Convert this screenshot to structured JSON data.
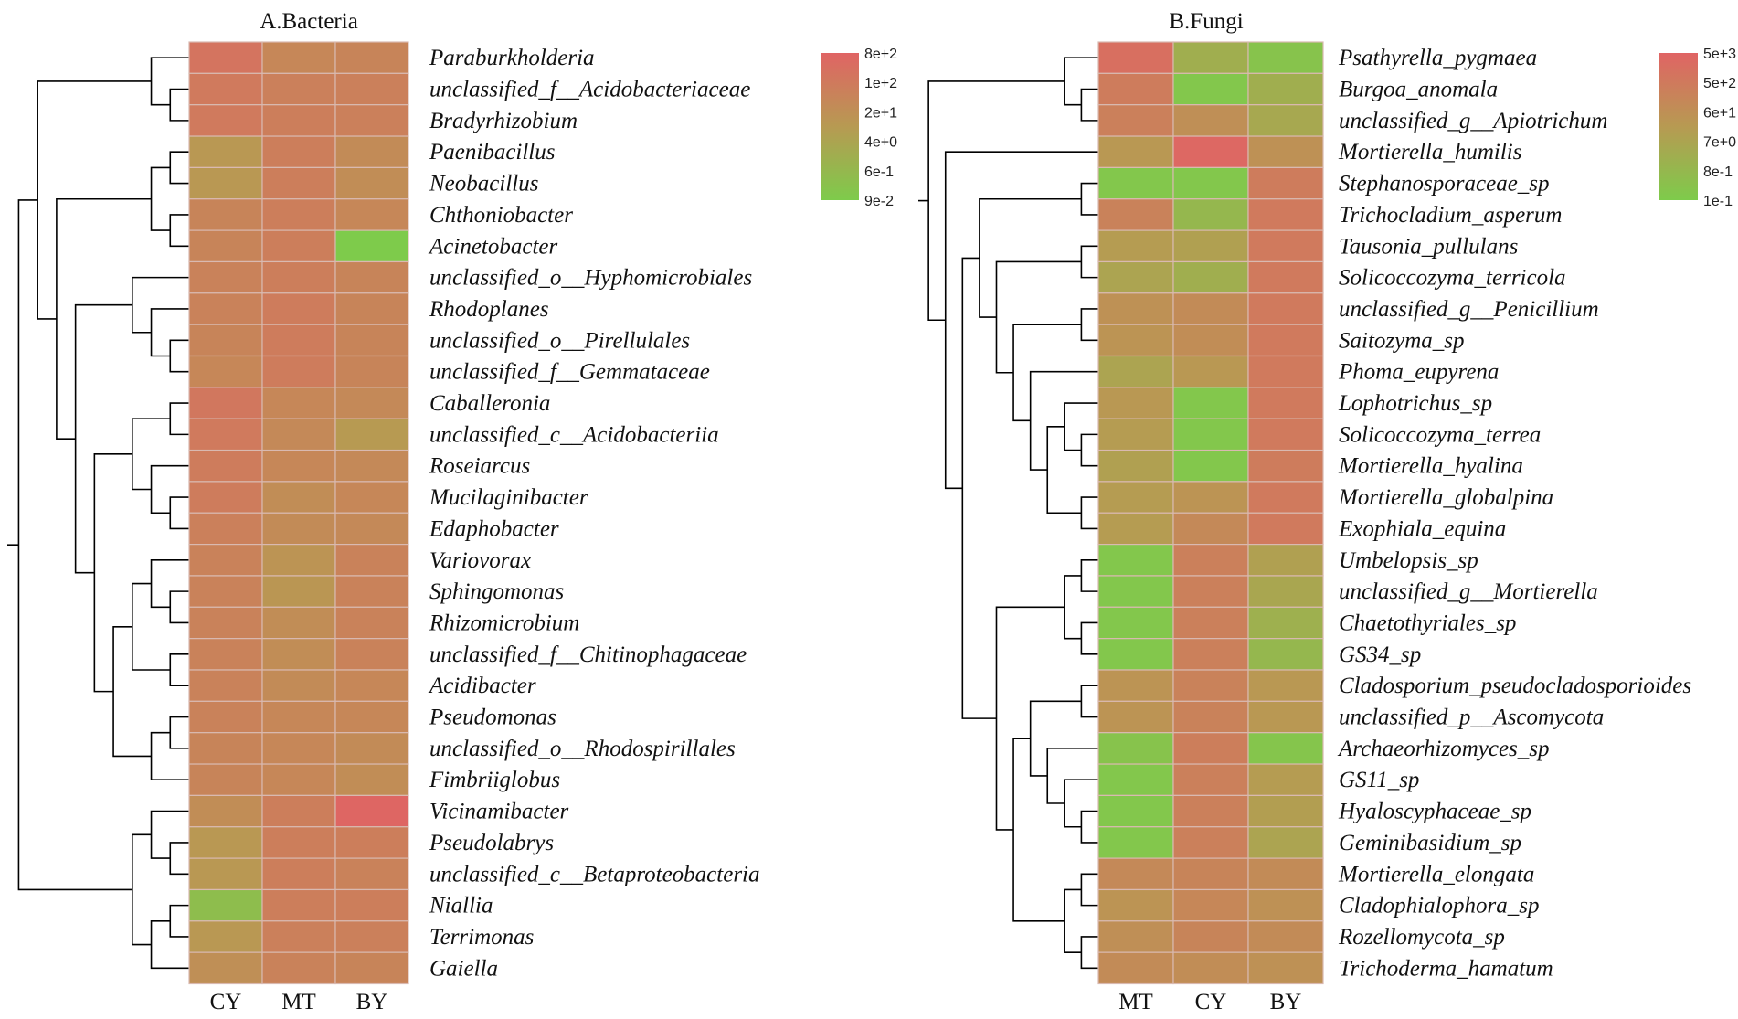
{
  "chart_data": [
    {
      "type": "heatmap",
      "title": "A.Bacteria",
      "columns": [
        "CY",
        "MT",
        "BY"
      ],
      "rows": [
        "Paraburkholderia",
        "unclassified_f__Acidobacteriaceae",
        "Bradyrhizobium",
        "Paenibacillus",
        "Neobacillus",
        "Chthoniobacter",
        "Acinetobacter",
        "unclassified_o__Hyphomicrobiales",
        "Rhodoplanes",
        "unclassified_o__Pirellulales",
        "unclassified_f__Gemmataceae",
        "Caballeronia",
        "unclassified_c__Acidobacteriia",
        "Roseiarcus",
        "Mucilaginibacter",
        "Edaphobacter",
        "Variovorax",
        "Sphingomonas",
        "Rhizomicrobium",
        "unclassified_f__Chitinophagaceae",
        "Acidibacter",
        "Pseudomonas",
        "unclassified_o__Rhodospirillales",
        "Fimbriiglobus",
        "Vicinamibacter",
        "Pseudolabrys",
        "unclassified_c__Betaproteobacteria",
        "Niallia",
        "Terrimonas",
        "Gaiella"
      ],
      "values": [
        [
          0.85,
          0.68,
          0.7
        ],
        [
          0.8,
          0.74,
          0.74
        ],
        [
          0.8,
          0.76,
          0.74
        ],
        [
          0.52,
          0.76,
          0.64
        ],
        [
          0.52,
          0.76,
          0.62
        ],
        [
          0.7,
          0.76,
          0.68
        ],
        [
          0.7,
          0.76,
          0.0
        ],
        [
          0.72,
          0.76,
          0.7
        ],
        [
          0.72,
          0.78,
          0.7
        ],
        [
          0.7,
          0.78,
          0.7
        ],
        [
          0.68,
          0.78,
          0.7
        ],
        [
          0.82,
          0.68,
          0.66
        ],
        [
          0.8,
          0.66,
          0.5
        ],
        [
          0.78,
          0.68,
          0.66
        ],
        [
          0.78,
          0.62,
          0.68
        ],
        [
          0.74,
          0.64,
          0.66
        ],
        [
          0.72,
          0.56,
          0.72
        ],
        [
          0.72,
          0.54,
          0.72
        ],
        [
          0.72,
          0.62,
          0.72
        ],
        [
          0.72,
          0.62,
          0.72
        ],
        [
          0.72,
          0.64,
          0.68
        ],
        [
          0.72,
          0.68,
          0.68
        ],
        [
          0.7,
          0.68,
          0.64
        ],
        [
          0.7,
          0.68,
          0.62
        ],
        [
          0.62,
          0.76,
          0.98
        ],
        [
          0.52,
          0.76,
          0.76
        ],
        [
          0.52,
          0.76,
          0.72
        ],
        [
          0.14,
          0.76,
          0.76
        ],
        [
          0.52,
          0.74,
          0.74
        ],
        [
          0.6,
          0.72,
          0.7
        ]
      ],
      "colorbar": {
        "labels": [
          "8e+2",
          "1e+2",
          "2e+1",
          "4e+0",
          "6e-1",
          "9e-2"
        ],
        "high_color": "#e06464",
        "mid_color": "#b79a52",
        "low_color": "#7ecb4b"
      }
    },
    {
      "type": "heatmap",
      "title": "B.Fungi",
      "columns": [
        "MT",
        "CY",
        "BY"
      ],
      "rows": [
        "Psathyrella_pygmaea",
        "Burgoa_anomala",
        "unclassified_g__Apiotrichum",
        "Mortierella_humilis",
        "Stephanosporaceae_sp",
        "Trichocladium_asperum",
        "Tausonia_pullulans",
        "Solicoccozyma_terricola",
        "unclassified_g__Penicillium",
        "Saitozyma_sp",
        "Phoma_eupyrena",
        "Lophotrichus_sp",
        "Solicoccozyma_terrea",
        "Mortierella_hyalina",
        "Mortierella_globalpina",
        "Exophiala_equina",
        "Umbelopsis_sp",
        "unclassified_g__Mortierella",
        "Chaetothyriales_sp",
        "GS34_sp",
        "Cladosporium_pseudocladosporioides",
        "unclassified_p__Ascomycota",
        "Archaeorhizomyces_sp",
        "GS11_sp",
        "Hyaloscyphaceae_sp",
        "Geminibasidium_sp",
        "Mortierella_elongata",
        "Cladophialophora_sp",
        "Rozellomycota_sp",
        "Trichoderma_hamatum"
      ],
      "values": [
        [
          0.9,
          0.3,
          0.08
        ],
        [
          0.78,
          0.04,
          0.3
        ],
        [
          0.74,
          0.6,
          0.36
        ],
        [
          0.52,
          0.96,
          0.58
        ],
        [
          0.04,
          0.04,
          0.78
        ],
        [
          0.72,
          0.2,
          0.8
        ],
        [
          0.48,
          0.44,
          0.8
        ],
        [
          0.4,
          0.3,
          0.8
        ],
        [
          0.58,
          0.64,
          0.8
        ],
        [
          0.56,
          0.62,
          0.8
        ],
        [
          0.4,
          0.52,
          0.8
        ],
        [
          0.52,
          0.04,
          0.8
        ],
        [
          0.48,
          0.04,
          0.8
        ],
        [
          0.44,
          0.04,
          0.78
        ],
        [
          0.48,
          0.56,
          0.8
        ],
        [
          0.48,
          0.66,
          0.8
        ],
        [
          0.04,
          0.74,
          0.44
        ],
        [
          0.04,
          0.74,
          0.38
        ],
        [
          0.04,
          0.74,
          0.28
        ],
        [
          0.04,
          0.74,
          0.2
        ],
        [
          0.56,
          0.72,
          0.52
        ],
        [
          0.56,
          0.72,
          0.52
        ],
        [
          0.08,
          0.76,
          0.06
        ],
        [
          0.04,
          0.74,
          0.48
        ],
        [
          0.04,
          0.74,
          0.46
        ],
        [
          0.04,
          0.74,
          0.4
        ],
        [
          0.66,
          0.7,
          0.64
        ],
        [
          0.56,
          0.68,
          0.58
        ],
        [
          0.6,
          0.7,
          0.64
        ],
        [
          0.64,
          0.62,
          0.58
        ]
      ],
      "colorbar": {
        "labels": [
          "5e+3",
          "5e+2",
          "6e+1",
          "7e+0",
          "8e-1",
          "1e-1"
        ],
        "high_color": "#e06464",
        "mid_color": "#b79a52",
        "low_color": "#7ecb4b"
      }
    }
  ]
}
